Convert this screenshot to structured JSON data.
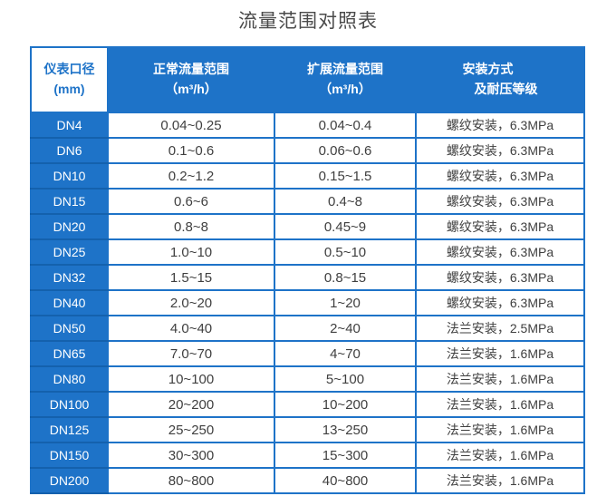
{
  "title": "流量范围对照表",
  "colors": {
    "primary_blue": "#1e73c8",
    "column_divider_blue": "#1461ad",
    "header_text_on_blue": "#ffffff",
    "first_header_text": "#1e73c8",
    "cell_text": "#3f3f3f",
    "title_text": "#4a4a4a"
  },
  "table": {
    "headers": {
      "col1": {
        "line1": "仪表口径",
        "line2": "(mm)"
      },
      "col2": {
        "line1": "正常流量范围",
        "line2": "（m³/h）"
      },
      "col3": {
        "line1": "扩展流量范围",
        "line2": "（m³/h）"
      },
      "col4": {
        "line1": "安装方式",
        "line2": "及耐压等级"
      }
    },
    "rows": [
      {
        "dn": "DN4",
        "normal": "0.04~0.25",
        "extended": "0.04~0.4",
        "install": "螺纹安装，6.3MPa"
      },
      {
        "dn": "DN6",
        "normal": "0.1~0.6",
        "extended": "0.06~0.6",
        "install": "螺纹安装，6.3MPa"
      },
      {
        "dn": "DN10",
        "normal": "0.2~1.2",
        "extended": "0.15~1.5",
        "install": "螺纹安装，6.3MPa"
      },
      {
        "dn": "DN15",
        "normal": "0.6~6",
        "extended": "0.4~8",
        "install": "螺纹安装，6.3MPa"
      },
      {
        "dn": "DN20",
        "normal": "0.8~8",
        "extended": "0.45~9",
        "install": "螺纹安装，6.3MPa"
      },
      {
        "dn": "DN25",
        "normal": "1.0~10",
        "extended": "0.5~10",
        "install": "螺纹安装，6.3MPa"
      },
      {
        "dn": "DN32",
        "normal": "1.5~15",
        "extended": "0.8~15",
        "install": "螺纹安装，6.3MPa"
      },
      {
        "dn": "DN40",
        "normal": "2.0~20",
        "extended": "1~20",
        "install": "螺纹安装，6.3MPa"
      },
      {
        "dn": "DN50",
        "normal": "4.0~40",
        "extended": "2~40",
        "install": "法兰安装，2.5MPa"
      },
      {
        "dn": "DN65",
        "normal": "7.0~70",
        "extended": "4~70",
        "install": "法兰安装，1.6MPa"
      },
      {
        "dn": "DN80",
        "normal": "10~100",
        "extended": "5~100",
        "install": "法兰安装，1.6MPa"
      },
      {
        "dn": "DN100",
        "normal": "20~200",
        "extended": "10~200",
        "install": "法兰安装，1.6MPa"
      },
      {
        "dn": "DN125",
        "normal": "25~250",
        "extended": "13~250",
        "install": "法兰安装，1.6MPa"
      },
      {
        "dn": "DN150",
        "normal": "30~300",
        "extended": "15~300",
        "install": "法兰安装，1.6MPa"
      },
      {
        "dn": "DN200",
        "normal": "80~800",
        "extended": "40~800",
        "install": "法兰安装，1.6MPa"
      }
    ]
  }
}
